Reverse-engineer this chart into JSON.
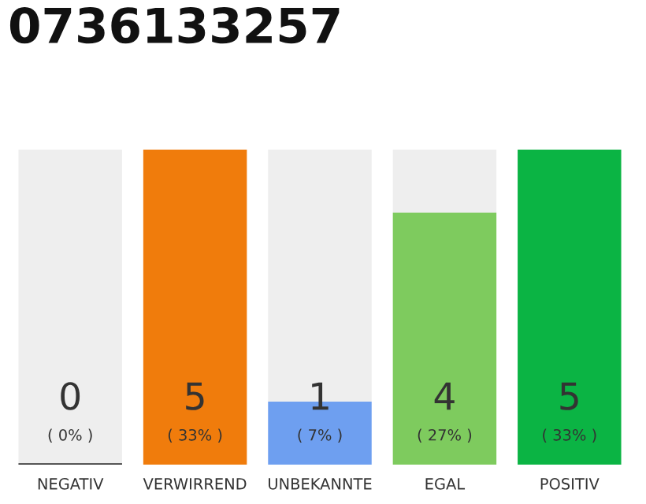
{
  "chart_data": {
    "type": "bar",
    "title": "0736133257",
    "stacked": true,
    "categories": [
      "NEGATIV",
      "VERWIRREND",
      "UNBEKANNTE",
      "EGAL",
      "POSITIV"
    ],
    "series": [
      {
        "colors": [
          "#333333",
          "#f07c0c",
          "#6e9ff0",
          "#7ecb5e",
          "#0bb444"
        ],
        "values": [
          0,
          5,
          1,
          4,
          5
        ],
        "value_labels": [
          "0\n( 0% )",
          "5\n( 33% )",
          "1\n( 7% )",
          "4\n( 27% )",
          "5\n( 33% )"
        ]
      },
      {
        "color": "#eeeeee",
        "values": [
          5,
          0,
          4,
          1,
          0
        ]
      }
    ],
    "ylim": [
      0,
      5
    ],
    "tick_labels": "x",
    "grid": false,
    "legend": false
  }
}
